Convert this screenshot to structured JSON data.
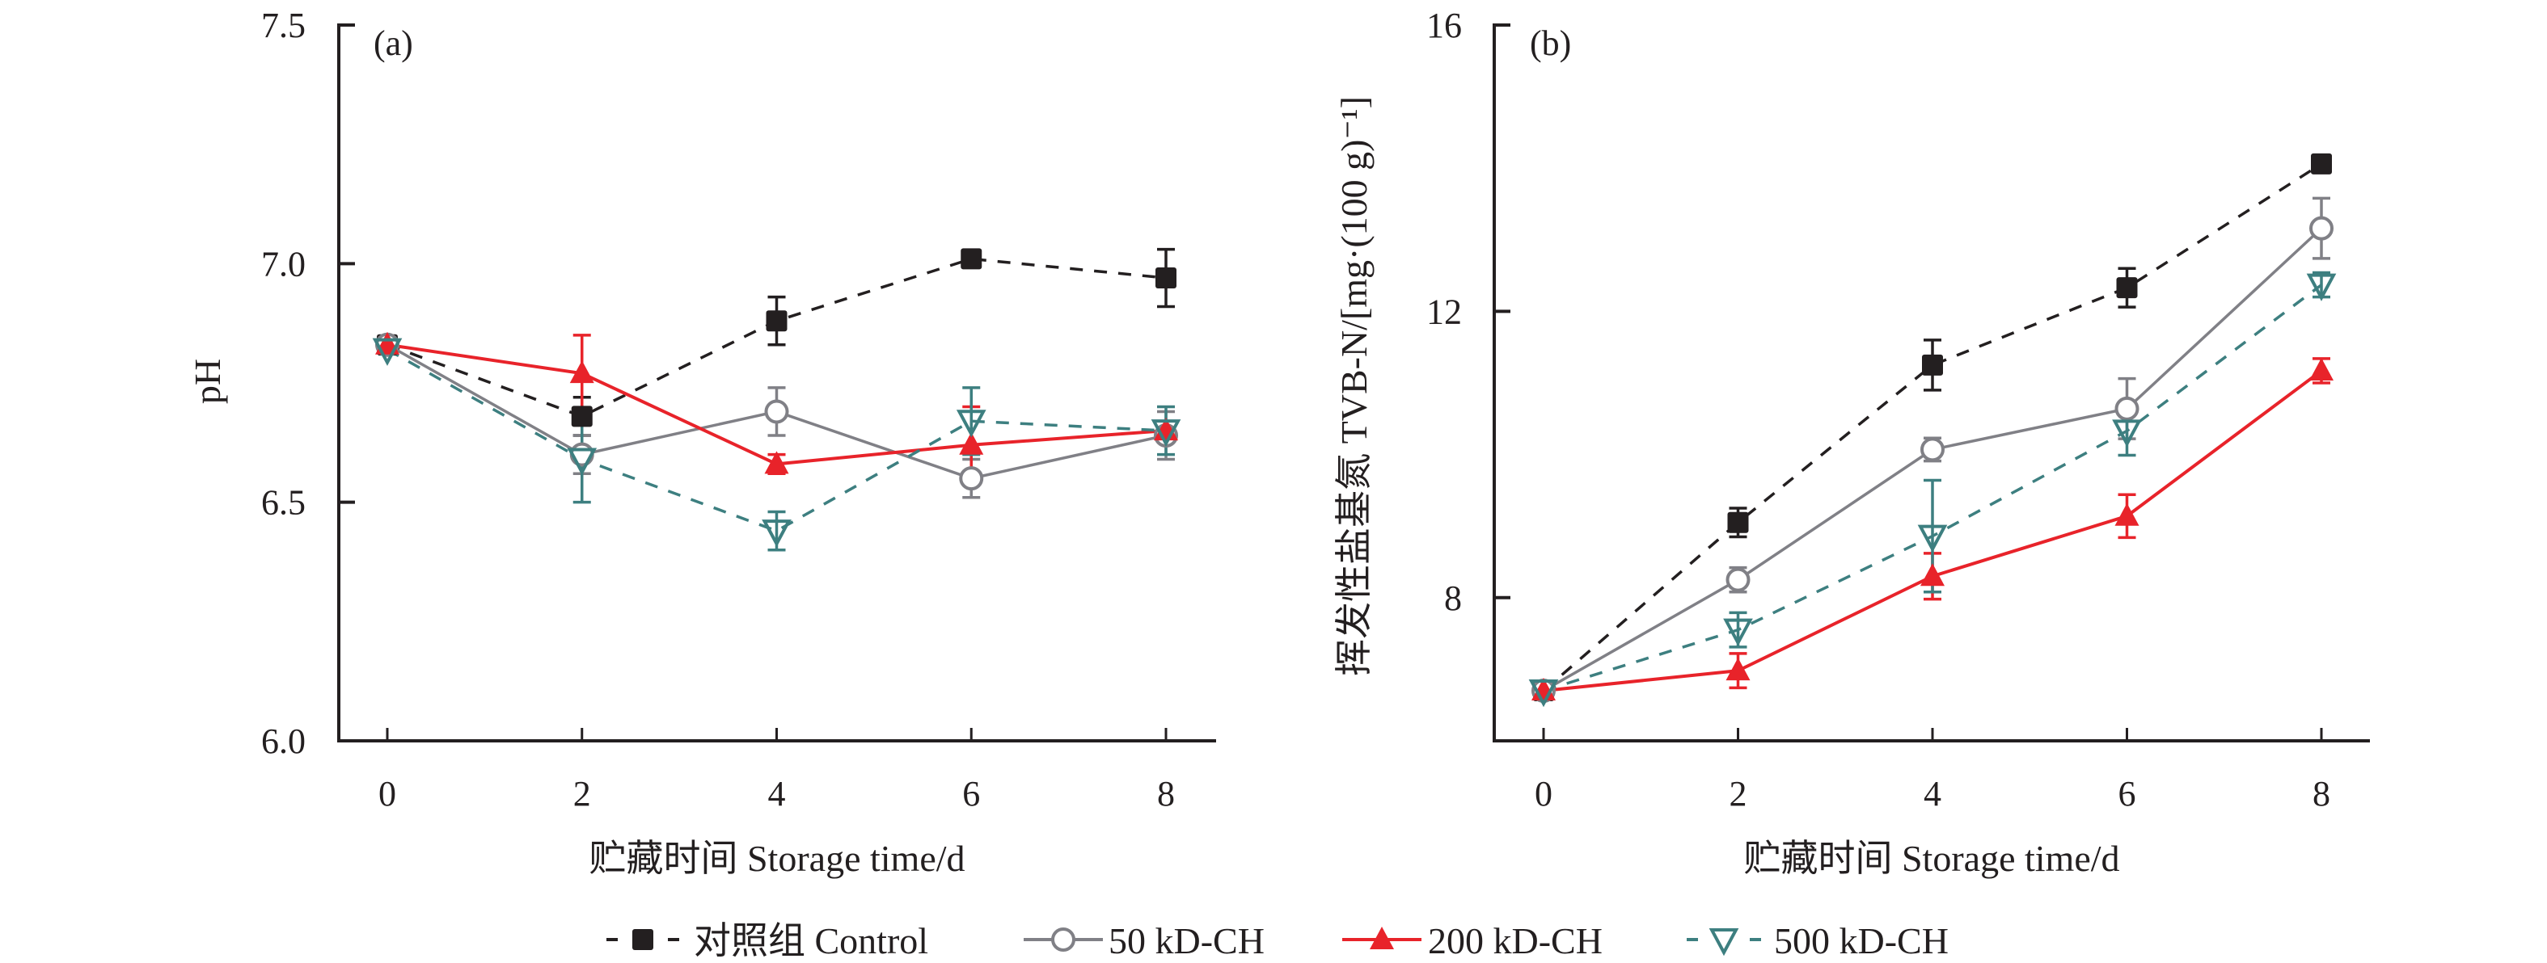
{
  "legend": {
    "position": "bottom-center",
    "entries": [
      {
        "label": "对照组 Control",
        "series": "control"
      },
      {
        "label": "50 kD-CH",
        "series": "ch50"
      },
      {
        "label": "200 kD-CH",
        "series": "ch200"
      },
      {
        "label": "500 kD-CH",
        "series": "ch500"
      }
    ]
  },
  "series_styles": {
    "control": {
      "color": "#231f20",
      "marker": "square-filled",
      "line": "dashed"
    },
    "ch50": {
      "color": "#808086",
      "marker": "circle-open",
      "line": "solid"
    },
    "ch200": {
      "color": "#e8232a",
      "marker": "triangle-up-filled",
      "line": "solid"
    },
    "ch500": {
      "color": "#3d7f80",
      "marker": "triangle-down-open",
      "line": "dashed"
    }
  },
  "chart_data": [
    {
      "type": "line",
      "panel_label": "(a)",
      "title": "",
      "xlabel": "贮藏时间 Storage time/d",
      "ylabel": "pH",
      "xlim": [
        -0.5,
        9.0
      ],
      "ylim": [
        6.0,
        7.5
      ],
      "grid": false,
      "x": [
        0,
        2,
        4,
        6,
        8
      ],
      "xticks": [
        "0",
        "2",
        "4",
        "6",
        "8"
      ],
      "yticks": [
        "6.0",
        "6.5",
        "7.0",
        "7.5"
      ],
      "ytick_values": [
        6.0,
        6.5,
        7.0,
        7.5
      ],
      "series": [
        {
          "key": "control",
          "name": "对照组 Control",
          "values": [
            6.83,
            6.68,
            6.88,
            7.01,
            6.97
          ],
          "errors": [
            0.01,
            0.04,
            0.05,
            0.01,
            0.06
          ]
        },
        {
          "key": "ch50",
          "name": "50 kD-CH",
          "values": [
            6.83,
            6.6,
            6.69,
            6.55,
            6.64
          ],
          "errors": [
            0.01,
            0.04,
            0.05,
            0.04,
            0.05
          ]
        },
        {
          "key": "ch200",
          "name": "200 kD-CH",
          "values": [
            6.83,
            6.77,
            6.58,
            6.62,
            6.65
          ],
          "errors": [
            0.01,
            0.08,
            0.02,
            0.08,
            0.02
          ]
        },
        {
          "key": "ch500",
          "name": "500 kD-CH",
          "values": [
            6.82,
            6.59,
            6.44,
            6.67,
            6.65
          ],
          "errors": [
            0.01,
            0.09,
            0.04,
            0.07,
            0.05
          ]
        }
      ]
    },
    {
      "type": "line",
      "panel_label": "(b)",
      "title": "",
      "xlabel": "贮藏时间 Storage time/d",
      "ylabel": "挥发性盐基氮 TVB-N/[mg·(100 g)⁻¹]",
      "xlim": [
        -0.5,
        8.5
      ],
      "ylim": [
        6,
        16
      ],
      "grid": false,
      "x": [
        0,
        2,
        4,
        6,
        8
      ],
      "xticks": [
        "0",
        "2",
        "4",
        "6",
        "8"
      ],
      "yticks": [
        "8",
        "12",
        "16"
      ],
      "ytick_values": [
        8,
        12,
        16
      ],
      "series": [
        {
          "key": "control",
          "name": "对照组 Control",
          "values": [
            6.7,
            9.05,
            11.25,
            12.33,
            14.06
          ],
          "errors": [
            0.05,
            0.2,
            0.35,
            0.27,
            0.12
          ]
        },
        {
          "key": "ch50",
          "name": "50 kD-CH",
          "values": [
            6.7,
            8.25,
            10.07,
            10.64,
            13.16
          ],
          "errors": [
            0.05,
            0.17,
            0.16,
            0.42,
            0.42
          ]
        },
        {
          "key": "ch200",
          "name": "200 kD-CH",
          "values": [
            6.7,
            6.98,
            8.3,
            9.14,
            11.17
          ],
          "errors": [
            0.05,
            0.24,
            0.32,
            0.3,
            0.17
          ]
        },
        {
          "key": "ch500",
          "name": "500 kD-CH",
          "values": [
            6.7,
            7.55,
            8.86,
            10.33,
            12.37
          ],
          "errors": [
            0.05,
            0.24,
            0.78,
            0.34,
            0.17
          ]
        }
      ]
    }
  ]
}
